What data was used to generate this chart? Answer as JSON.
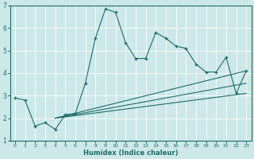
{
  "xlabel": "Humidex (Indice chaleur)",
  "xlim": [
    -0.5,
    23.5
  ],
  "ylim": [
    1,
    7
  ],
  "xticks": [
    0,
    1,
    2,
    3,
    4,
    5,
    6,
    7,
    8,
    9,
    10,
    11,
    12,
    13,
    14,
    15,
    16,
    17,
    18,
    19,
    20,
    21,
    22,
    23
  ],
  "yticks": [
    1,
    2,
    3,
    4,
    5,
    6,
    7
  ],
  "bg_color": "#cce8e8",
  "line_color": "#1e6b6b",
  "grid_color": "#ffffff",
  "line1_x": [
    0,
    1,
    2,
    3,
    4,
    5,
    6,
    7,
    8,
    9,
    10,
    11,
    12,
    13,
    14,
    15,
    16,
    17,
    18,
    19,
    20,
    21,
    22,
    23
  ],
  "line1_y": [
    2.9,
    2.8,
    1.65,
    1.8,
    1.5,
    2.15,
    2.2,
    3.55,
    5.55,
    6.85,
    6.7,
    5.35,
    4.65,
    4.65,
    5.8,
    5.55,
    5.2,
    5.1,
    4.4,
    4.05,
    4.05,
    4.7,
    3.1,
    4.1
  ],
  "line2_x": [
    4,
    23
  ],
  "line2_y": [
    2.0,
    4.1
  ],
  "line3_x": [
    4,
    23
  ],
  "line3_y": [
    2.0,
    3.55
  ],
  "line4_x": [
    4,
    23
  ],
  "line4_y": [
    2.0,
    3.1
  ]
}
